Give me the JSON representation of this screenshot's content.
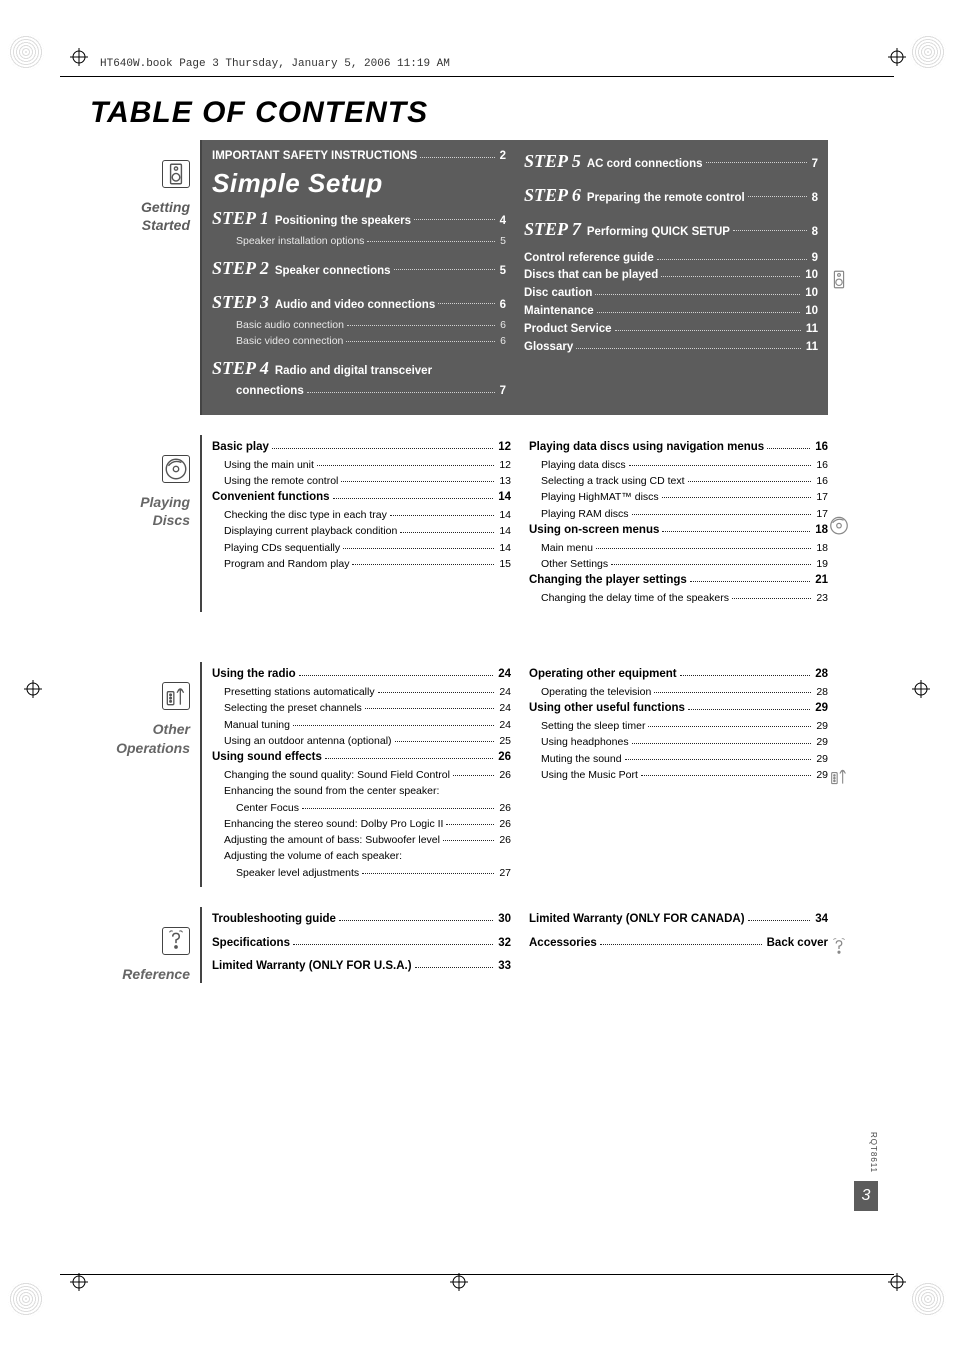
{
  "meta": {
    "header_text": "HT640W.book  Page 3  Thursday, January 5, 2006  11:19 AM",
    "title": "TABLE OF CONTENTS",
    "manual_code": "RQT8611",
    "page_number": "3"
  },
  "colors": {
    "dark_section_bg": "#5c5c5c",
    "text_on_dark": "#ffffff",
    "sidebar_rule": "#444444",
    "body_text": "#000000"
  },
  "sections": [
    {
      "id": "getting-started",
      "sidebar_label_line1": "Getting",
      "sidebar_label_line2": "Started",
      "dark": true,
      "icon": "speaker",
      "right_icon": "speaker",
      "columns": [
        [
          {
            "bold": true,
            "label": "IMPORTANT SAFETY INSTRUCTIONS",
            "page": "2"
          },
          {
            "type": "simple_setup",
            "label": "Simple Setup"
          },
          {
            "type": "step",
            "step_n": "STEP 1",
            "label": "Positioning the speakers",
            "page": "4",
            "bold": true
          },
          {
            "indent": 2,
            "label": "Speaker installation options",
            "page": "5"
          },
          {
            "spacer": true
          },
          {
            "type": "step",
            "step_n": "STEP 2",
            "label": "Speaker connections",
            "page": "5",
            "bold": true
          },
          {
            "spacer": true
          },
          {
            "type": "step",
            "step_n": "STEP 3",
            "label": "Audio and video connections",
            "page": "6",
            "bold": true
          },
          {
            "indent": 2,
            "label": "Basic audio connection",
            "page": "6"
          },
          {
            "indent": 2,
            "label": "Basic video connection",
            "page": "6"
          },
          {
            "spacer": true
          },
          {
            "type": "step",
            "step_n": "STEP 4",
            "label": "Radio and digital transceiver",
            "bold": true
          },
          {
            "indent": 2,
            "bold": true,
            "label": "connections",
            "page": "7"
          }
        ],
        [
          {
            "type": "step",
            "step_n": "STEP 5",
            "label": "AC cord connections",
            "page": "7",
            "bold": true
          },
          {
            "spacer": true
          },
          {
            "type": "step",
            "step_n": "STEP 6",
            "label": "Preparing the remote control",
            "page": "8",
            "bold": true
          },
          {
            "spacer": true
          },
          {
            "type": "step",
            "step_n": "STEP 7",
            "label": "Performing QUICK SETUP",
            "page": "8",
            "bold": true
          },
          {
            "spacer": true
          },
          {
            "bold": true,
            "label": "Control reference guide",
            "page": "9"
          },
          {
            "bold": true,
            "label": "Discs that can be played",
            "page": "10"
          },
          {
            "bold": true,
            "label": "Disc caution",
            "page": "10"
          },
          {
            "bold": true,
            "label": "Maintenance",
            "page": "10"
          },
          {
            "bold": true,
            "label": "Product Service",
            "page": "11"
          },
          {
            "bold": true,
            "label": "Glossary",
            "page": "11"
          }
        ]
      ]
    },
    {
      "id": "playing-discs",
      "sidebar_label_line1": "Playing",
      "sidebar_label_line2": "Discs",
      "dark": false,
      "icon": "disc",
      "right_icon": "disc",
      "columns": [
        [
          {
            "bold": true,
            "label": "Basic play",
            "page": "12"
          },
          {
            "indent": 1,
            "label": "Using the main unit",
            "page": "12"
          },
          {
            "indent": 1,
            "label": "Using the remote control",
            "page": "13"
          },
          {
            "bold": true,
            "label": "Convenient functions",
            "page": "14"
          },
          {
            "indent": 1,
            "label": "Checking the disc type in each tray",
            "page": "14"
          },
          {
            "indent": 1,
            "label": "Displaying current playback condition",
            "page": "14"
          },
          {
            "indent": 1,
            "label": "Playing CDs sequentially",
            "page": "14"
          },
          {
            "indent": 1,
            "label": "Program and Random play",
            "page": "15"
          }
        ],
        [
          {
            "bold": true,
            "label": "Playing data discs using navigation menus",
            "page": "16"
          },
          {
            "indent": 1,
            "label": "Playing data discs",
            "page": "16"
          },
          {
            "indent": 1,
            "label": "Selecting a track using CD text",
            "page": "16"
          },
          {
            "indent": 1,
            "label": "Playing HighMAT™ discs",
            "page": "17"
          },
          {
            "indent": 1,
            "label": "Playing RAM discs",
            "page": "17"
          },
          {
            "bold": true,
            "label": "Using on-screen menus",
            "page": "18"
          },
          {
            "indent": 1,
            "label": "Main menu",
            "page": "18"
          },
          {
            "indent": 1,
            "label": "Other Settings",
            "page": "19"
          },
          {
            "bold": true,
            "label": "Changing the player settings",
            "page": "21"
          },
          {
            "indent": 1,
            "label": "Changing the delay time of the speakers",
            "page": "23"
          }
        ]
      ]
    },
    {
      "id": "other-operations",
      "sidebar_label_line1": "Other",
      "sidebar_label_line2": "Operations",
      "dark": false,
      "icon": "remote-tower",
      "right_icon": "remote-tower",
      "columns": [
        [
          {
            "bold": true,
            "label": "Using the radio",
            "page": "24"
          },
          {
            "indent": 1,
            "label": "Presetting stations automatically",
            "page": "24"
          },
          {
            "indent": 1,
            "label": "Selecting the preset channels",
            "page": "24"
          },
          {
            "indent": 1,
            "label": "Manual tuning",
            "page": "24"
          },
          {
            "indent": 1,
            "label": "Using an outdoor antenna (optional)",
            "page": "25"
          },
          {
            "bold": true,
            "label": "Using sound effects",
            "page": "26"
          },
          {
            "indent": 1,
            "label": "Changing the sound quality: Sound Field Control",
            "page": "26"
          },
          {
            "indent": 1,
            "label": "Enhancing the sound from the center speaker:"
          },
          {
            "indent": 2,
            "label": "Center Focus",
            "page": "26"
          },
          {
            "indent": 1,
            "label": "Enhancing the stereo sound: Dolby Pro Logic II",
            "page": "26"
          },
          {
            "indent": 1,
            "label": "Adjusting the amount of bass: Subwoofer level",
            "page": "26"
          },
          {
            "indent": 1,
            "label": "Adjusting the volume of each speaker:"
          },
          {
            "indent": 2,
            "label": "Speaker level adjustments",
            "page": "27"
          }
        ],
        [
          {
            "bold": true,
            "label": "Operating other equipment",
            "page": "28"
          },
          {
            "indent": 1,
            "label": "Operating the television",
            "page": "28"
          },
          {
            "bold": true,
            "label": "Using other useful functions",
            "page": "29"
          },
          {
            "indent": 1,
            "label": "Setting the sleep timer",
            "page": "29"
          },
          {
            "indent": 1,
            "label": "Using headphones",
            "page": "29"
          },
          {
            "indent": 1,
            "label": "Muting the sound",
            "page": "29"
          },
          {
            "indent": 1,
            "label": "Using the Music Port",
            "page": "29"
          }
        ]
      ]
    },
    {
      "id": "reference",
      "sidebar_label_line1": "Reference",
      "sidebar_label_line2": "",
      "dark": false,
      "icon": "question",
      "right_icon": "question",
      "columns": [
        [
          {
            "bold": true,
            "label": "Troubleshooting guide",
            "page": "30"
          },
          {
            "spacer": true
          },
          {
            "bold": true,
            "label": "Specifications",
            "page": "32"
          },
          {
            "spacer": true
          },
          {
            "bold": true,
            "label": "Limited Warranty (ONLY FOR U.S.A.)",
            "page": "33"
          }
        ],
        [
          {
            "bold": true,
            "label": "Limited Warranty (ONLY FOR CANADA)",
            "page": "34"
          },
          {
            "spacer": true
          },
          {
            "bold": true,
            "label": "Accessories",
            "page": "Back cover"
          }
        ]
      ]
    }
  ]
}
